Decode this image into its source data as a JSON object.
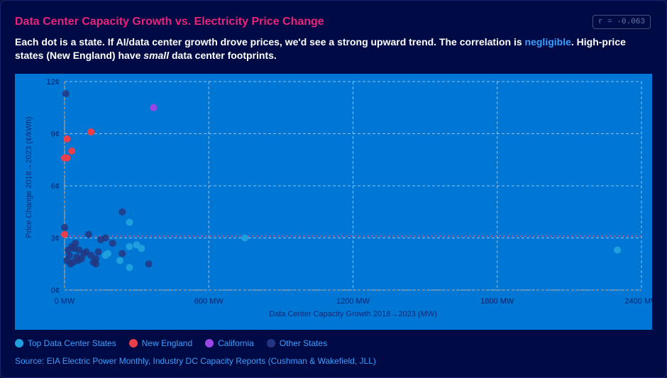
{
  "header": {
    "title": "Data Center Capacity Growth vs. Electricity Price Change",
    "correlation_badge": "r = -0.063",
    "subtitle_part1": "Each dot is a state. If AI/data center growth drove prices, we'd see a strong upward trend. The correlation is ",
    "subtitle_highlight": "negligible",
    "subtitle_part2": ". High-price states (New England) have ",
    "subtitle_emphasis": "small",
    "subtitle_part3": " data center footprints."
  },
  "colors": {
    "plot_bg": "#0077d4",
    "top_dc": "#1fa0de",
    "new_england": "#ea3f4a",
    "california": "#9a45e6",
    "other": "#233683",
    "reference_line": "#ea3f6a"
  },
  "legend": [
    {
      "label": "Top Data Center States",
      "color": "#1fa0de"
    },
    {
      "label": "New England",
      "color": "#ea3f4a"
    },
    {
      "label": "California",
      "color": "#9a45e6"
    },
    {
      "label": "Other States",
      "color": "#233683"
    }
  ],
  "source": "Source: EIA Electric Power Monthly, Industry DC Capacity Reports (Cushman & Wakefield, JLL)",
  "chart_data": {
    "type": "scatter",
    "xlabel": "Data Center Capacity Growth 2018→2023 (MW)",
    "ylabel": "Price Change 2018→2023 (¢/kWh)",
    "xlim": [
      0,
      2400
    ],
    "ylim": [
      0,
      12
    ],
    "x_ticks": [
      0,
      600,
      1200,
      1800,
      2400
    ],
    "x_tick_labels": [
      "0 MW",
      "600 MW",
      "1200 MW",
      "1800 MW",
      "2400 MW"
    ],
    "y_ticks": [
      0,
      3,
      6,
      9,
      12
    ],
    "y_tick_labels": [
      "0¢",
      "3¢",
      "6¢",
      "9¢",
      "12¢"
    ],
    "reference_line_y": 3.1,
    "grid": true,
    "series": [
      {
        "name": "Top Data Center States",
        "color": "#1fa0de",
        "points": [
          {
            "x": 2300,
            "y": 2.3
          },
          {
            "x": 750,
            "y": 3.0
          },
          {
            "x": 270,
            "y": 3.9
          },
          {
            "x": 270,
            "y": 1.3
          },
          {
            "x": 300,
            "y": 2.6
          },
          {
            "x": 320,
            "y": 2.4
          },
          {
            "x": 270,
            "y": 2.5
          },
          {
            "x": 230,
            "y": 1.7
          },
          {
            "x": 170,
            "y": 2.0
          },
          {
            "x": 180,
            "y": 2.1
          }
        ]
      },
      {
        "name": "New England",
        "color": "#ea3f4a",
        "points": [
          {
            "x": 10,
            "y": 8.7
          },
          {
            "x": 30,
            "y": 8.0
          },
          {
            "x": 10,
            "y": 7.6
          },
          {
            "x": 0,
            "y": 7.6
          },
          {
            "x": 110,
            "y": 9.1
          },
          {
            "x": 0,
            "y": 3.2
          }
        ]
      },
      {
        "name": "California",
        "color": "#9a45e6",
        "points": [
          {
            "x": 370,
            "y": 10.5
          }
        ]
      },
      {
        "name": "Other States",
        "color": "#233683",
        "points": [
          {
            "x": 5,
            "y": 11.3
          },
          {
            "x": 240,
            "y": 4.5
          },
          {
            "x": 0,
            "y": 3.6
          },
          {
            "x": 100,
            "y": 3.2
          },
          {
            "x": 150,
            "y": 2.9
          },
          {
            "x": 200,
            "y": 2.7
          },
          {
            "x": 170,
            "y": 3.0
          },
          {
            "x": 30,
            "y": 2.5
          },
          {
            "x": 40,
            "y": 2.4
          },
          {
            "x": 60,
            "y": 2.3
          },
          {
            "x": 80,
            "y": 2.1
          },
          {
            "x": 110,
            "y": 2.0
          },
          {
            "x": 140,
            "y": 2.2
          },
          {
            "x": 240,
            "y": 2.1
          },
          {
            "x": 20,
            "y": 2.0
          },
          {
            "x": 50,
            "y": 1.9
          },
          {
            "x": 70,
            "y": 1.8
          },
          {
            "x": 90,
            "y": 2.2
          },
          {
            "x": 130,
            "y": 1.8
          },
          {
            "x": 10,
            "y": 1.7
          },
          {
            "x": 35,
            "y": 1.6
          },
          {
            "x": 55,
            "y": 1.7
          },
          {
            "x": 25,
            "y": 1.5
          },
          {
            "x": 130,
            "y": 1.5
          },
          {
            "x": 350,
            "y": 1.5
          },
          {
            "x": 15,
            "y": 2.3
          },
          {
            "x": 45,
            "y": 2.7
          },
          {
            "x": 120,
            "y": 1.6
          }
        ]
      }
    ]
  }
}
